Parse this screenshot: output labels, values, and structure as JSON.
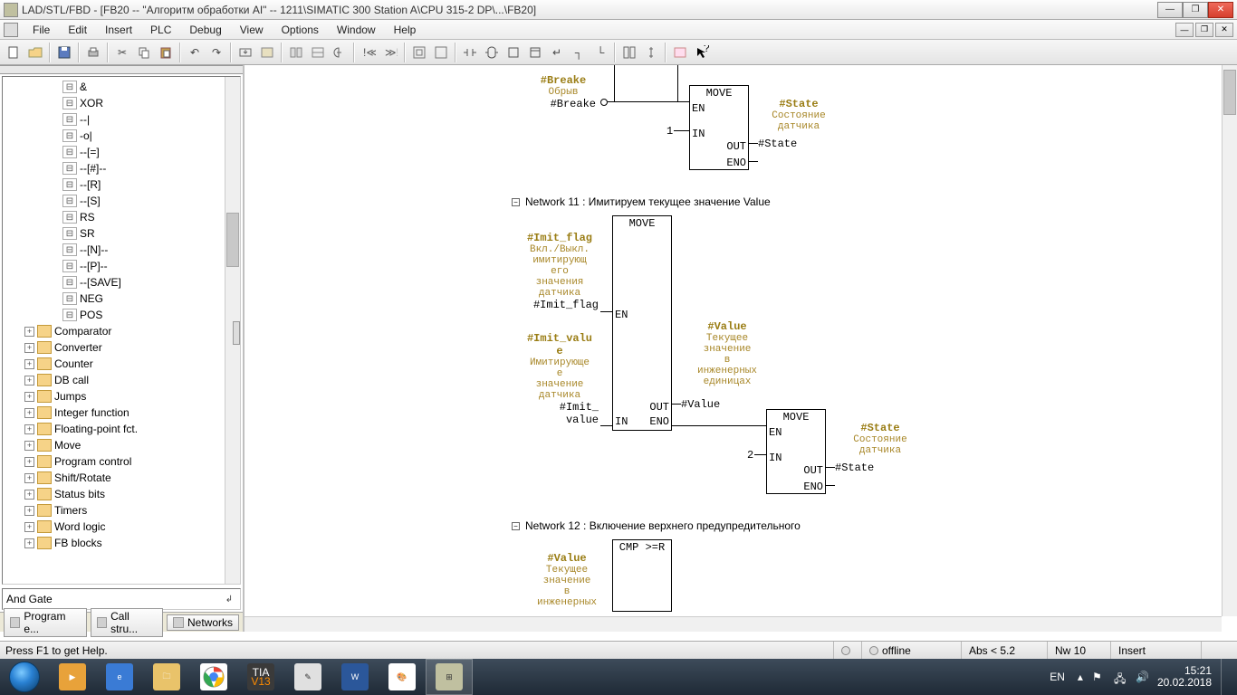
{
  "titlebar": {
    "text": "LAD/STL/FBD  - [FB20 -- \"Алгоритм обработки AI\" -- 1211\\SIMATIC 300 Station A\\CPU 315-2 DP\\...\\FB20]"
  },
  "menu": {
    "items": [
      "File",
      "Edit",
      "Insert",
      "PLC",
      "Debug",
      "View",
      "Options",
      "Window",
      "Help"
    ]
  },
  "tree": {
    "leaves": [
      {
        "label": "&",
        "indent": 62
      },
      {
        "label": "XOR",
        "indent": 62
      },
      {
        "label": "--|",
        "indent": 62
      },
      {
        "label": "-o|",
        "indent": 62
      },
      {
        "label": "--[=]",
        "indent": 62
      },
      {
        "label": "--[#]--",
        "indent": 62
      },
      {
        "label": "--[R]",
        "indent": 62
      },
      {
        "label": "--[S]",
        "indent": 62
      },
      {
        "label": "RS",
        "indent": 62
      },
      {
        "label": "SR",
        "indent": 62
      },
      {
        "label": "--[N]--",
        "indent": 62
      },
      {
        "label": "--[P]--",
        "indent": 62
      },
      {
        "label": "--[SAVE]",
        "indent": 62
      },
      {
        "label": "NEG",
        "indent": 62
      },
      {
        "label": "POS",
        "indent": 62
      }
    ],
    "folders": [
      {
        "label": "Comparator"
      },
      {
        "label": "Converter"
      },
      {
        "label": "Counter"
      },
      {
        "label": "DB call"
      },
      {
        "label": "Jumps"
      },
      {
        "label": "Integer function"
      },
      {
        "label": "Floating-point fct."
      },
      {
        "label": "Move"
      },
      {
        "label": "Program control"
      },
      {
        "label": "Shift/Rotate"
      },
      {
        "label": "Status bits"
      },
      {
        "label": "Timers"
      },
      {
        "label": "Word logic"
      },
      {
        "label": "FB blocks"
      }
    ],
    "description": "And Gate",
    "tabs": [
      {
        "label": "Program e..."
      },
      {
        "label": "Call stru..."
      },
      {
        "label": "Networks"
      }
    ]
  },
  "networks": {
    "n11": {
      "title": "Network 11 : Имитируем текущее значение Value"
    },
    "n12": {
      "title": "Network 12 : Включение верхнего предупредительного"
    }
  },
  "blocks": {
    "move": "MOVE",
    "en": "EN",
    "in": "IN",
    "out": "OUT",
    "eno": "ENO",
    "cmp": "CMP >=R"
  },
  "signals": {
    "breake": {
      "name": "#Breake",
      "desc": "Обрыв",
      "var": "#Breake"
    },
    "state": {
      "name": "#State",
      "desc1": "Состояние",
      "desc2": "датчика",
      "var": "#State"
    },
    "const1": "1",
    "const2": "2",
    "imit_flag": {
      "name": "#Imit_flag",
      "d1": "Вкл./Выкл.",
      "d2": "имитирующ",
      "d3": "его",
      "d4": "значения",
      "d5": "датчика",
      "var": "#Imit_flag"
    },
    "imit_value": {
      "name": "#Imit_valu",
      "name2": "e",
      "d1": "Имитирующе",
      "d2": "е",
      "d3": "значение",
      "d4": "датчика",
      "var1": "#Imit_",
      "var2": "value"
    },
    "value": {
      "name": "#Value",
      "d1": "Текущее",
      "d2": "значение",
      "d3": "в",
      "d4": "инженерных",
      "d5": "единицах",
      "var": "#Value"
    }
  },
  "status": {
    "help": "Press F1 to get Help.",
    "offline": "offline",
    "abs": "Abs < 5.2",
    "nw": "Nw 10",
    "insert": "Insert"
  },
  "taskbar": {
    "lang": "EN",
    "time": "15:21",
    "date": "20.02.2018",
    "tia": "TIA",
    "v13": "V13"
  },
  "colors": {
    "brown": "#9a7d14",
    "descbrown": "#a88728"
  }
}
